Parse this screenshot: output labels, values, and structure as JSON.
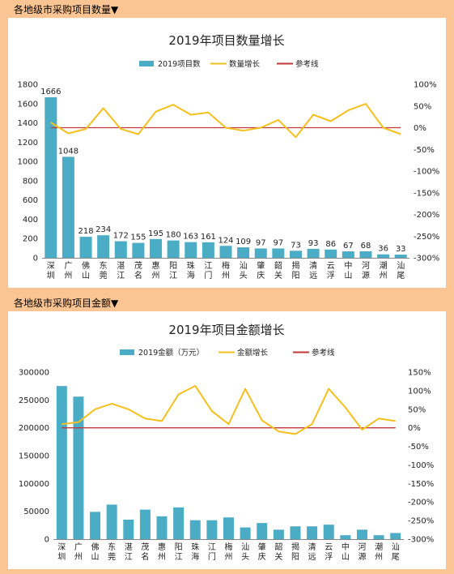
{
  "sections": [
    {
      "header": "各地级市采购项目数量▼"
    },
    {
      "header": "各地级市采购项目金额▼"
    }
  ],
  "colors": {
    "bar": "#4BACC6",
    "line": "#F5C01E",
    "ref": "#C0393B",
    "background": "#FBC593",
    "panel": "#FFFFFF"
  },
  "chart_data": [
    {
      "type": "bar",
      "title": "2019年项目数量增长",
      "categories": [
        "深圳",
        "广州",
        "佛山",
        "东莞",
        "湛江",
        "茂名",
        "惠州",
        "阳江",
        "珠海",
        "江门",
        "梅州",
        "汕头",
        "肇庆",
        "韶关",
        "揭阳",
        "清远",
        "云浮",
        "中山",
        "河源",
        "潮州",
        "汕尾"
      ],
      "series": [
        {
          "name": "2019项目数",
          "type": "bar",
          "axis": "left",
          "values": [
            1666,
            1048,
            218,
            234,
            172,
            155,
            195,
            180,
            163,
            161,
            124,
            109,
            97,
            97,
            73,
            93,
            86,
            67,
            68,
            36,
            33
          ]
        },
        {
          "name": "数量增长",
          "type": "line",
          "axis": "right",
          "unit": "%",
          "values": [
            12,
            -13,
            -3,
            45,
            -3,
            -15,
            37,
            53,
            30,
            35,
            0,
            -7,
            0,
            18,
            -22,
            30,
            15,
            40,
            55,
            0,
            -15
          ]
        },
        {
          "name": "参考线",
          "type": "line",
          "axis": "right",
          "unit": "%",
          "values": [
            0,
            0,
            0,
            0,
            0,
            0,
            0,
            0,
            0,
            0,
            0,
            0,
            0,
            0,
            0,
            0,
            0,
            0,
            0,
            0,
            0
          ]
        }
      ],
      "data_labels": [
        "1666",
        "1048",
        "218",
        "234",
        "172",
        "155",
        "195",
        "180",
        "163",
        "161",
        "124",
        "109",
        "97",
        "97",
        "73",
        "93",
        "86",
        "67",
        "68",
        "36",
        "33"
      ],
      "y_left": {
        "min": 0,
        "max": 1800,
        "ticks": [
          "0",
          "200",
          "400",
          "600",
          "800",
          "1000",
          "1200",
          "1400",
          "1600",
          "1800"
        ]
      },
      "y_right": {
        "min": -300,
        "max": 100,
        "ticks": [
          "-300%",
          "-250%",
          "-200%",
          "-150%",
          "-100%",
          "-50%",
          "0%",
          "50%",
          "100%"
        ]
      },
      "legend_position": "top",
      "grid": false
    },
    {
      "type": "bar",
      "title": "2019年项目金额增长",
      "categories": [
        "深圳",
        "广州",
        "佛山",
        "东莞",
        "湛江",
        "茂名",
        "惠州",
        "阳江",
        "珠海",
        "江门",
        "梅州",
        "汕头",
        "肇庆",
        "韶关",
        "揭阳",
        "清远",
        "云浮",
        "中山",
        "河源",
        "潮州",
        "汕尾"
      ],
      "series": [
        {
          "name": "2019金额（万元）",
          "type": "bar",
          "axis": "left",
          "values": [
            275000,
            256000,
            49000,
            62000,
            35000,
            53000,
            41000,
            57000,
            34000,
            34000,
            39000,
            21000,
            29000,
            17000,
            23000,
            23000,
            26000,
            7000,
            17000,
            7000,
            11000
          ]
        },
        {
          "name": "金额增长",
          "type": "line",
          "axis": "right",
          "unit": "%",
          "values": [
            10,
            15,
            50,
            65,
            50,
            25,
            18,
            90,
            113,
            45,
            10,
            105,
            20,
            -10,
            -17,
            10,
            105,
            55,
            -5,
            25,
            18
          ]
        },
        {
          "name": "参考线",
          "type": "line",
          "axis": "right",
          "unit": "%",
          "values": [
            0,
            0,
            0,
            0,
            0,
            0,
            0,
            0,
            0,
            0,
            0,
            0,
            0,
            0,
            0,
            0,
            0,
            0,
            0,
            0,
            0
          ]
        }
      ],
      "y_left": {
        "min": 0,
        "max": 300000,
        "ticks": [
          "0",
          "50000",
          "100000",
          "150000",
          "200000",
          "250000",
          "300000"
        ]
      },
      "y_right": {
        "min": -300,
        "max": 150,
        "ticks": [
          "-300%",
          "-250%",
          "-200%",
          "-150%",
          "-100%",
          "-50%",
          "0%",
          "50%",
          "100%",
          "150%"
        ]
      },
      "legend_position": "top",
      "grid": false
    }
  ]
}
